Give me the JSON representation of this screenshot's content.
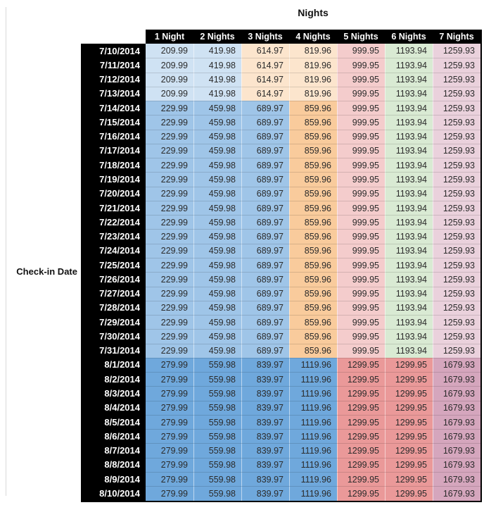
{
  "colors": {
    "header_bg": "#000000",
    "header_text": "#ffffff",
    "cell_text": "#2b2b2b",
    "left_gridline": "#d9d9d9",
    "table_border": "#000000"
  },
  "chart_data": {
    "type": "table",
    "title": "Nights",
    "row_axis_label": "Check-in Date",
    "columns": [
      "1 Night",
      "2 Nights",
      "3 Nights",
      "4 Nights",
      "5 Nights",
      "6 Nights",
      "7 Nights"
    ],
    "tier_colors": {
      "t1": [
        "#cfe2f3",
        "#cfe2f3",
        "#fce5cd",
        "#fce5cd",
        "#f4cccc",
        "#d9ead3",
        "#ead1dc"
      ],
      "t2": [
        "#9fc5e8",
        "#9fc5e8",
        "#9fc5e8",
        "#f9cb9c",
        "#f4cccc",
        "#d9ead3",
        "#ead1dc"
      ],
      "t3": [
        "#6fa8dc",
        "#6fa8dc",
        "#6fa8dc",
        "#6fa8dc",
        "#ea9999",
        "#ea9999",
        "#d5a6bd"
      ]
    },
    "rows": [
      {
        "date": "7/10/2014",
        "tier": "t1",
        "values": [
          209.99,
          419.98,
          614.97,
          819.96,
          999.95,
          1193.94,
          1259.93
        ]
      },
      {
        "date": "7/11/2014",
        "tier": "t1",
        "values": [
          209.99,
          419.98,
          614.97,
          819.96,
          999.95,
          1193.94,
          1259.93
        ]
      },
      {
        "date": "7/12/2014",
        "tier": "t1",
        "values": [
          209.99,
          419.98,
          614.97,
          819.96,
          999.95,
          1193.94,
          1259.93
        ]
      },
      {
        "date": "7/13/2014",
        "tier": "t1",
        "values": [
          209.99,
          419.98,
          614.97,
          819.96,
          999.95,
          1193.94,
          1259.93
        ]
      },
      {
        "date": "7/14/2014",
        "tier": "t2",
        "values": [
          229.99,
          459.98,
          689.97,
          859.96,
          999.95,
          1193.94,
          1259.93
        ]
      },
      {
        "date": "7/15/2014",
        "tier": "t2",
        "values": [
          229.99,
          459.98,
          689.97,
          859.96,
          999.95,
          1193.94,
          1259.93
        ]
      },
      {
        "date": "7/16/2014",
        "tier": "t2",
        "values": [
          229.99,
          459.98,
          689.97,
          859.96,
          999.95,
          1193.94,
          1259.93
        ]
      },
      {
        "date": "7/17/2014",
        "tier": "t2",
        "values": [
          229.99,
          459.98,
          689.97,
          859.96,
          999.95,
          1193.94,
          1259.93
        ]
      },
      {
        "date": "7/18/2014",
        "tier": "t2",
        "values": [
          229.99,
          459.98,
          689.97,
          859.96,
          999.95,
          1193.94,
          1259.93
        ]
      },
      {
        "date": "7/19/2014",
        "tier": "t2",
        "values": [
          229.99,
          459.98,
          689.97,
          859.96,
          999.95,
          1193.94,
          1259.93
        ]
      },
      {
        "date": "7/20/2014",
        "tier": "t2",
        "values": [
          229.99,
          459.98,
          689.97,
          859.96,
          999.95,
          1193.94,
          1259.93
        ]
      },
      {
        "date": "7/21/2014",
        "tier": "t2",
        "values": [
          229.99,
          459.98,
          689.97,
          859.96,
          999.95,
          1193.94,
          1259.93
        ]
      },
      {
        "date": "7/22/2014",
        "tier": "t2",
        "values": [
          229.99,
          459.98,
          689.97,
          859.96,
          999.95,
          1193.94,
          1259.93
        ]
      },
      {
        "date": "7/23/2014",
        "tier": "t2",
        "values": [
          229.99,
          459.98,
          689.97,
          859.96,
          999.95,
          1193.94,
          1259.93
        ]
      },
      {
        "date": "7/24/2014",
        "tier": "t2",
        "values": [
          229.99,
          459.98,
          689.97,
          859.96,
          999.95,
          1193.94,
          1259.93
        ]
      },
      {
        "date": "7/25/2014",
        "tier": "t2",
        "values": [
          229.99,
          459.98,
          689.97,
          859.96,
          999.95,
          1193.94,
          1259.93
        ]
      },
      {
        "date": "7/26/2014",
        "tier": "t2",
        "values": [
          229.99,
          459.98,
          689.97,
          859.96,
          999.95,
          1193.94,
          1259.93
        ]
      },
      {
        "date": "7/27/2014",
        "tier": "t2",
        "values": [
          229.99,
          459.98,
          689.97,
          859.96,
          999.95,
          1193.94,
          1259.93
        ]
      },
      {
        "date": "7/28/2014",
        "tier": "t2",
        "values": [
          229.99,
          459.98,
          689.97,
          859.96,
          999.95,
          1193.94,
          1259.93
        ]
      },
      {
        "date": "7/29/2014",
        "tier": "t2",
        "values": [
          229.99,
          459.98,
          689.97,
          859.96,
          999.95,
          1193.94,
          1259.93
        ]
      },
      {
        "date": "7/30/2014",
        "tier": "t2",
        "values": [
          229.99,
          459.98,
          689.97,
          859.96,
          999.95,
          1193.94,
          1259.93
        ]
      },
      {
        "date": "7/31/2014",
        "tier": "t2",
        "values": [
          229.99,
          459.98,
          689.97,
          859.96,
          999.95,
          1193.94,
          1259.93
        ]
      },
      {
        "date": "8/1/2014",
        "tier": "t3",
        "values": [
          279.99,
          559.98,
          839.97,
          1119.96,
          1299.95,
          1299.95,
          1679.93
        ]
      },
      {
        "date": "8/2/2014",
        "tier": "t3",
        "values": [
          279.99,
          559.98,
          839.97,
          1119.96,
          1299.95,
          1299.95,
          1679.93
        ]
      },
      {
        "date": "8/3/2014",
        "tier": "t3",
        "values": [
          279.99,
          559.98,
          839.97,
          1119.96,
          1299.95,
          1299.95,
          1679.93
        ]
      },
      {
        "date": "8/4/2014",
        "tier": "t3",
        "values": [
          279.99,
          559.98,
          839.97,
          1119.96,
          1299.95,
          1299.95,
          1679.93
        ]
      },
      {
        "date": "8/5/2014",
        "tier": "t3",
        "values": [
          279.99,
          559.98,
          839.97,
          1119.96,
          1299.95,
          1299.95,
          1679.93
        ]
      },
      {
        "date": "8/6/2014",
        "tier": "t3",
        "values": [
          279.99,
          559.98,
          839.97,
          1119.96,
          1299.95,
          1299.95,
          1679.93
        ]
      },
      {
        "date": "8/7/2014",
        "tier": "t3",
        "values": [
          279.99,
          559.98,
          839.97,
          1119.96,
          1299.95,
          1299.95,
          1679.93
        ]
      },
      {
        "date": "8/8/2014",
        "tier": "t3",
        "values": [
          279.99,
          559.98,
          839.97,
          1119.96,
          1299.95,
          1299.95,
          1679.93
        ]
      },
      {
        "date": "8/9/2014",
        "tier": "t3",
        "values": [
          279.99,
          559.98,
          839.97,
          1119.96,
          1299.95,
          1299.95,
          1679.93
        ]
      },
      {
        "date": "8/10/2014",
        "tier": "t3",
        "values": [
          279.99,
          559.98,
          839.97,
          1119.96,
          1299.95,
          1299.95,
          1679.93
        ]
      }
    ]
  }
}
